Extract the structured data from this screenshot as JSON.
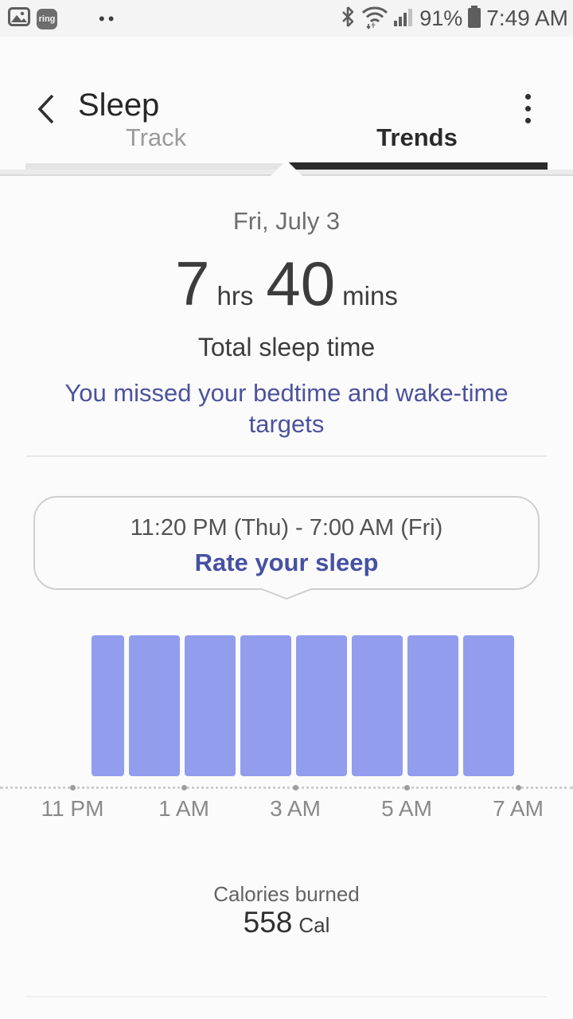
{
  "status_bar": {
    "time": "7:49 AM",
    "battery_percent": "91%",
    "ring_label": "ring",
    "notification_dots": "••",
    "left_icon_names": [
      "gallery-icon",
      "ring-app-icon",
      "more-notifications-dots"
    ],
    "right_icon_names": [
      "bluetooth-icon",
      "wifi-icon",
      "signal-icon",
      "battery-icon"
    ]
  },
  "header": {
    "title": "Sleep",
    "back_icon": "chevron-left",
    "menu_icon": "three-dot-menu"
  },
  "tabs": [
    {
      "label": "Track",
      "active": false
    },
    {
      "label": "Trends",
      "active": true
    }
  ],
  "summary": {
    "date": "Fri, July 3",
    "hours": "7",
    "hours_unit": "hrs",
    "minutes": "40",
    "minutes_unit": "mins",
    "caption": "Total sleep time",
    "target_message": "You missed your bedtime and wake-time targets"
  },
  "session_card": {
    "time_range": "11:20 PM (Thu) - 7:00 AM (Fri)",
    "action_label": "Rate your sleep"
  },
  "chart_data": {
    "type": "bar",
    "title": "Sleep period Thu 11:20 PM to Fri 7:00 AM",
    "encoding": "each bar is one clock-hour block of sleep; duration encoded as bar width, all blocks fully asleep (full height)",
    "x_tick_labels": [
      "11 PM",
      "1 AM",
      "3 AM",
      "5 AM",
      "7 AM"
    ],
    "ticks": [
      {
        "label": "11 PM",
        "offset_min": 0
      },
      {
        "label": "1 AM",
        "offset_min": 120
      },
      {
        "label": "3 AM",
        "offset_min": 240
      },
      {
        "label": "5 AM",
        "offset_min": 360
      },
      {
        "label": "7 AM",
        "offset_min": 480
      }
    ],
    "segments": [
      {
        "start": "11:20 PM",
        "offset_min": 20,
        "minutes": 40
      },
      {
        "start": "12:00 AM",
        "offset_min": 60,
        "minutes": 60
      },
      {
        "start": "1:00 AM",
        "offset_min": 120,
        "minutes": 60
      },
      {
        "start": "2:00 AM",
        "offset_min": 180,
        "minutes": 60
      },
      {
        "start": "3:00 AM",
        "offset_min": 240,
        "minutes": 60
      },
      {
        "start": "4:00 AM",
        "offset_min": 300,
        "minutes": 60
      },
      {
        "start": "5:00 AM",
        "offset_min": 360,
        "minutes": 60
      },
      {
        "start": "6:00 AM",
        "offset_min": 420,
        "minutes": 60
      }
    ],
    "bar_color": "#929DEE",
    "axis_style": "dotted",
    "ylim_minutes": [
      0,
      60
    ]
  },
  "calories": {
    "label": "Calories burned",
    "value": "558",
    "unit": "Cal"
  },
  "colors": {
    "accent_purple": "#4C539E",
    "action_purple": "#4751A3",
    "bar_purple": "#929DEE",
    "tab_active": "#2B2B2B",
    "tab_inactive": "#9B9B9B"
  }
}
